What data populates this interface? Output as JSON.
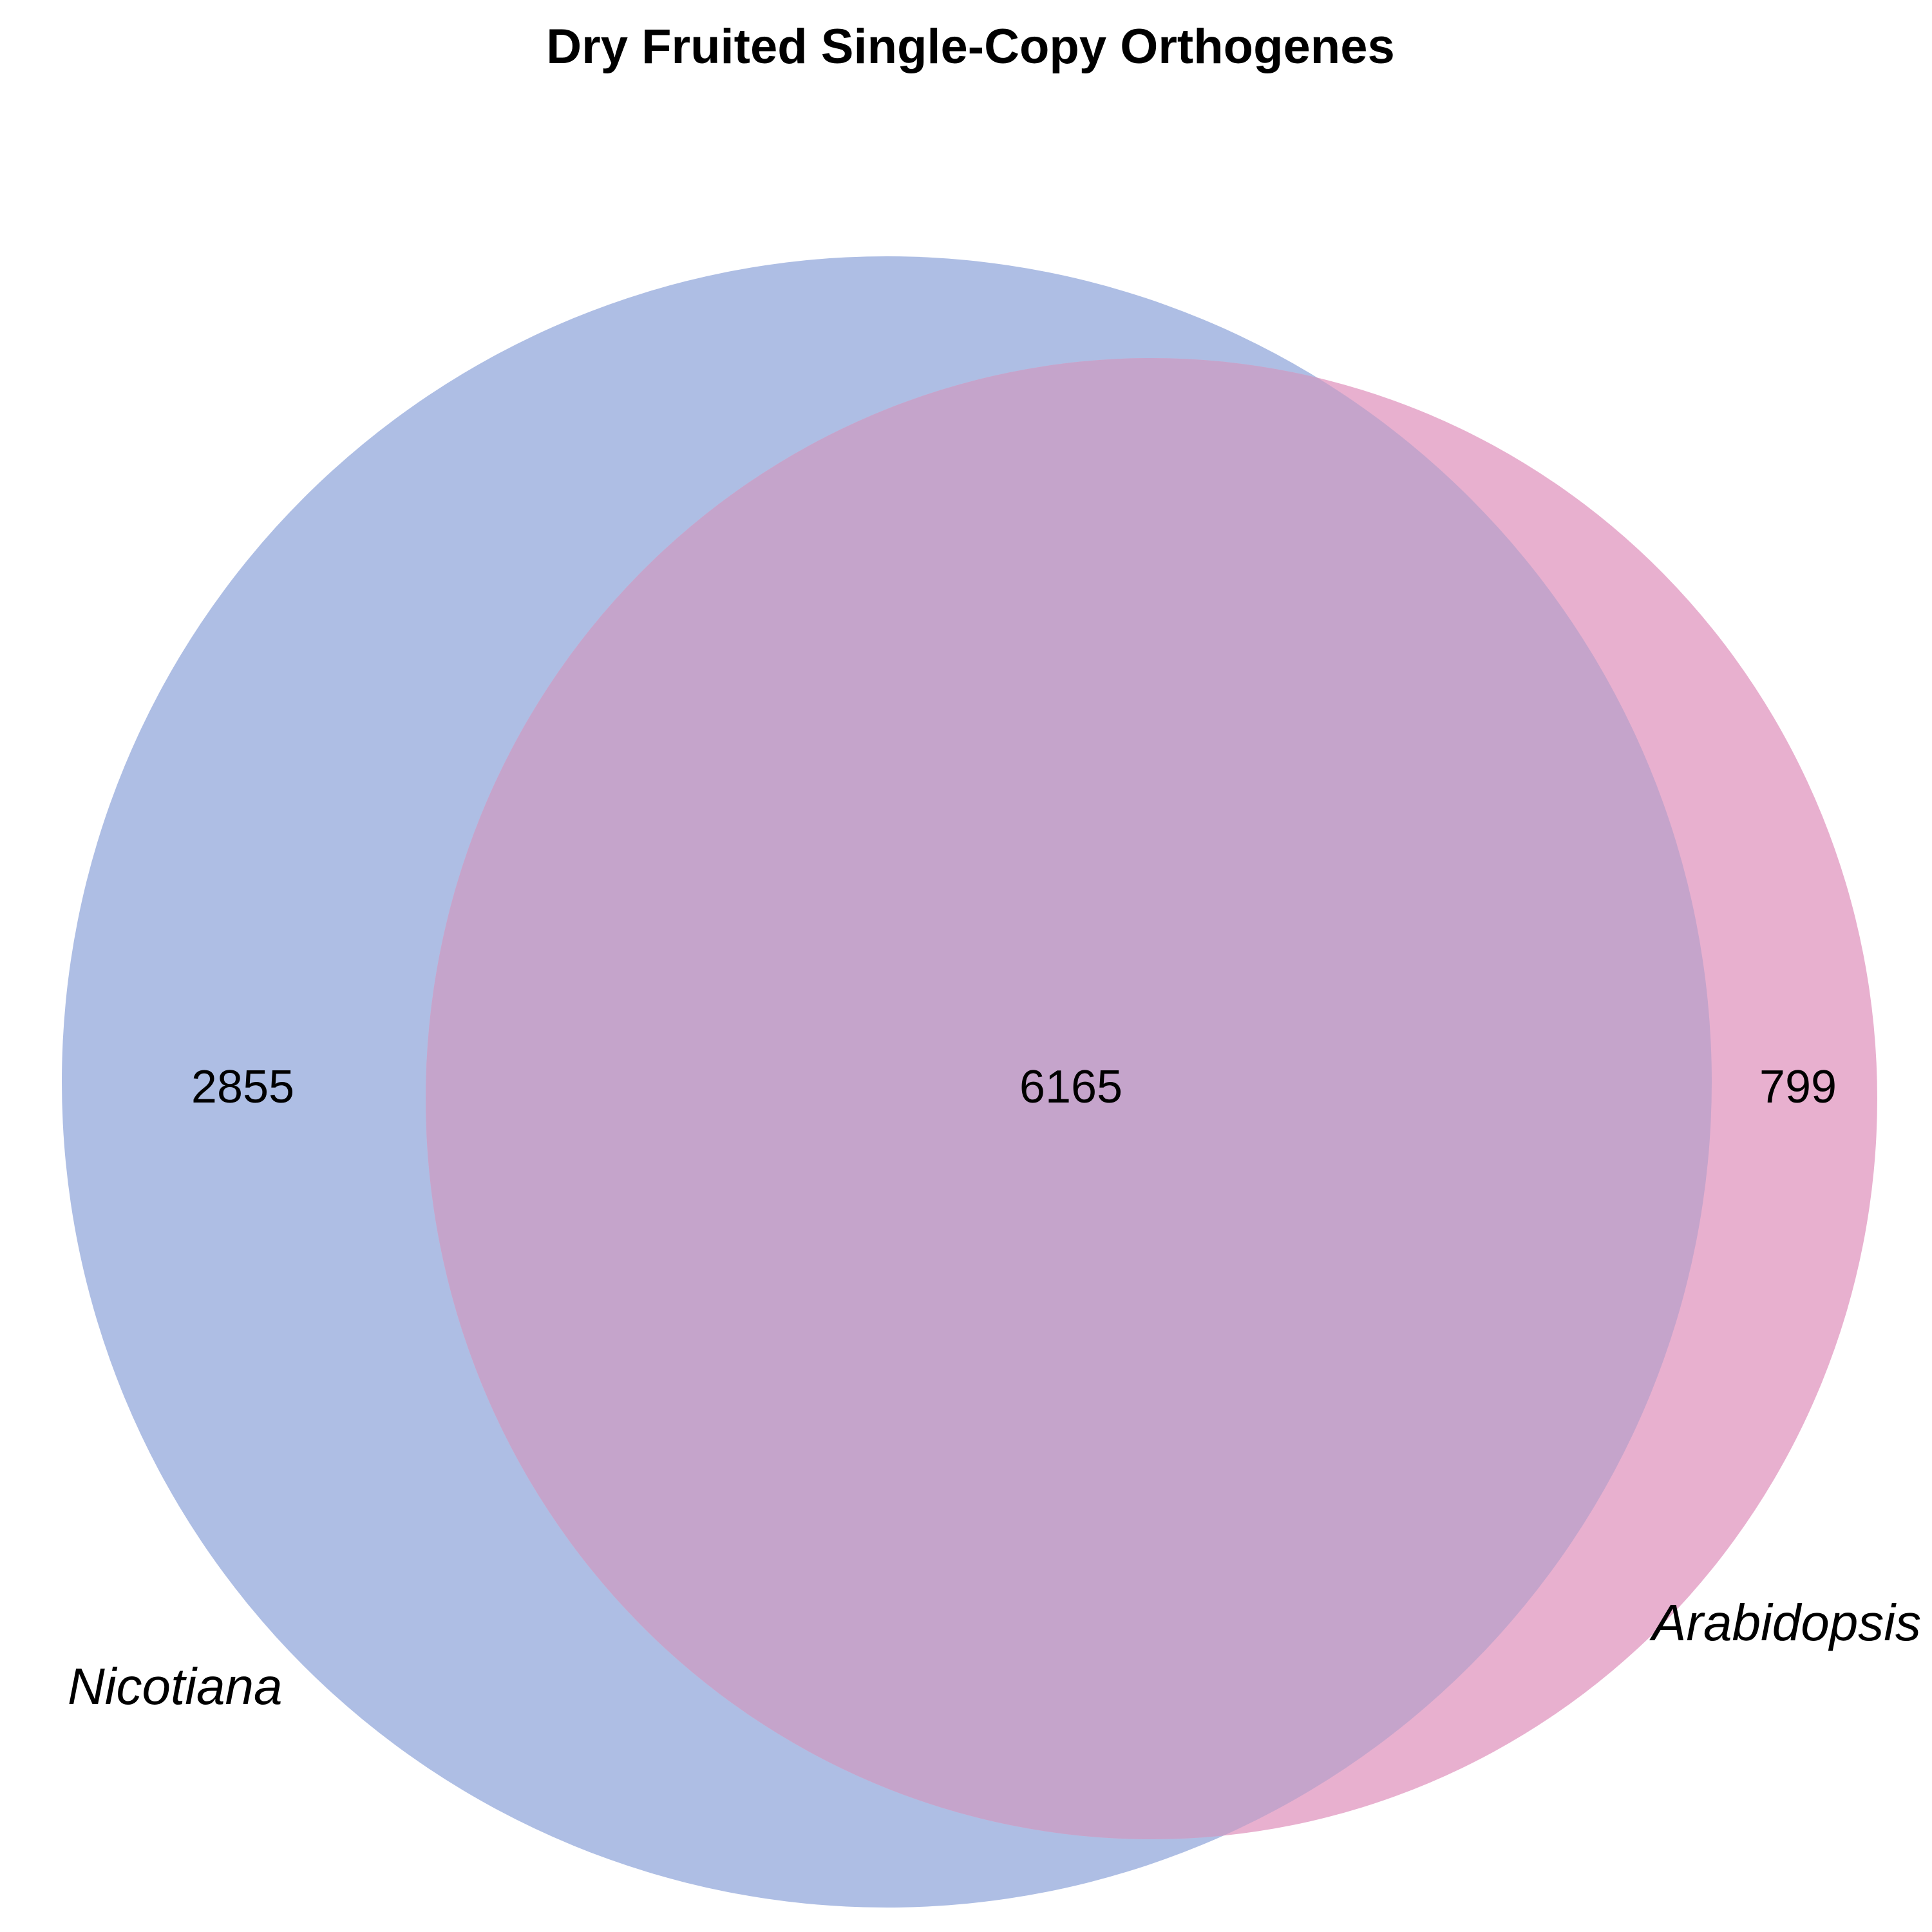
{
  "title": "Dry Fruited Single-Copy Orthogenes",
  "sets": [
    {
      "name": "Nicotiana",
      "color": "#aebee4"
    },
    {
      "name": "Arabidopsis",
      "color": "#e8b0cf"
    }
  ],
  "regions": {
    "nicotiana_only": "2855",
    "shared": "6165",
    "arabidopsis_only": "799"
  },
  "overlap_color": "#c5a4cb"
}
